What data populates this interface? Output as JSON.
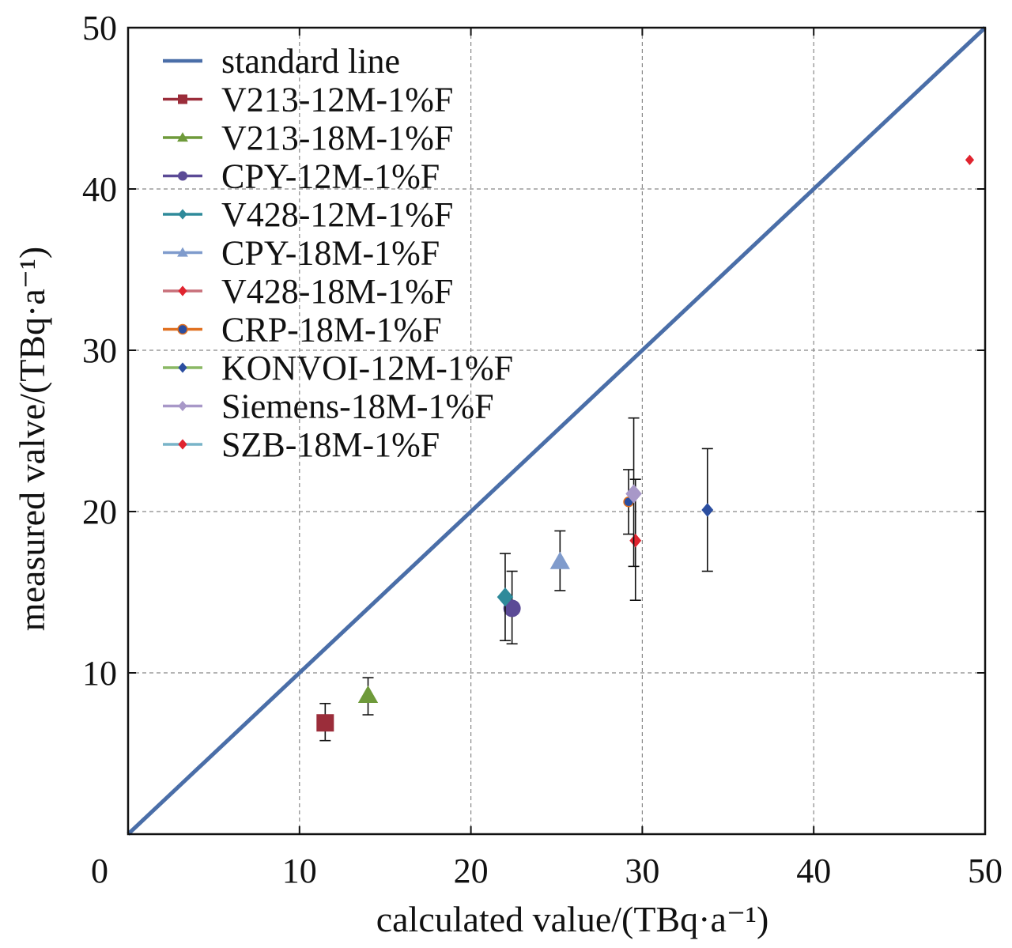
{
  "chart_data": {
    "type": "scatter",
    "xlabel": "calculated value/(TBq·a⁻¹)",
    "ylabel": "measured valve/(TBq·a⁻¹)",
    "xlim": [
      0,
      50
    ],
    "ylim": [
      0,
      50
    ],
    "x_ticks": [
      0,
      10,
      20,
      30,
      40,
      50
    ],
    "y_ticks": [
      10,
      20,
      30,
      40,
      50
    ],
    "grid": true,
    "legend_position": "top-left",
    "reference_line": {
      "name": "standard line",
      "color": "#4a6ea8",
      "points": [
        [
          0,
          0
        ],
        [
          50,
          50
        ]
      ]
    },
    "series": [
      {
        "name": "V213-12M-1%F",
        "color": "#9b2d3a",
        "marker": "square",
        "size": "large",
        "x": 11.5,
        "y": 6.9,
        "err_low": 5.8,
        "err_high": 8.1
      },
      {
        "name": "V213-18M-1%F",
        "color": "#6e9a3a",
        "marker": "triangle",
        "size": "large",
        "x": 14.0,
        "y": 8.6,
        "err_low": 7.4,
        "err_high": 9.7
      },
      {
        "name": "CPY-12M-1%F",
        "color": "#5b4a96",
        "marker": "circle",
        "size": "large",
        "x": 22.4,
        "y": 14.0,
        "err_low": 11.8,
        "err_high": 16.3
      },
      {
        "name": "V428-12M-1%F",
        "color": "#2f8a9a",
        "marker": "diamond",
        "size": "large",
        "x": 22.0,
        "y": 14.7,
        "err_low": 12.0,
        "err_high": 17.4
      },
      {
        "name": "CPY-18M-1%F",
        "color": "#7f9bcc",
        "marker": "triangle",
        "size": "large",
        "x": 25.2,
        "y": 16.9,
        "err_low": 15.1,
        "err_high": 18.8
      },
      {
        "name": "V428-18M-1%F",
        "color": "#e0242f",
        "marker": "diamond",
        "size": "medium",
        "x": 29.6,
        "y": 18.2,
        "err_low": 14.5,
        "err_high": 22.0
      },
      {
        "name": "CRP-18M-1%F",
        "color": "#2b4ea0",
        "marker": "circle",
        "size": "small",
        "edge": "#e07020",
        "x": 29.2,
        "y": 20.6,
        "err_low": 18.6,
        "err_high": 22.6
      },
      {
        "name": "KONVOI-12M-1%F",
        "color": "#2b4ea0",
        "marker": "diamond",
        "size": "medium",
        "x": 33.8,
        "y": 20.1,
        "err_low": 16.3,
        "err_high": 23.9
      },
      {
        "name": "Siemens-18M-1%F",
        "color": "#a898c8",
        "marker": "diamond",
        "size": "large",
        "x": 29.5,
        "y": 21.1,
        "err_low": 16.6,
        "err_high": 25.8
      },
      {
        "name": "SZB-18M-1%F",
        "color": "#e0242f",
        "marker": "diamond",
        "size": "small",
        "x": 49.1,
        "y": 41.8,
        "err_low": null,
        "err_high": null
      }
    ],
    "legend_line_colors": {
      "standard line": "#4a6ea8",
      "V213-12M-1%F": "#9b2d3a",
      "V213-18M-1%F": "#6e9a3a",
      "CPY-12M-1%F": "#5b4a96",
      "V428-12M-1%F": "#2f8a9a",
      "CPY-18M-1%F": "#7f9bcc",
      "V428-18M-1%F": "#c8707a",
      "CRP-18M-1%F": "#e07020",
      "KONVOI-12M-1%F": "#8ab864",
      "Siemens-18M-1%F": "#a898c8",
      "SZB-18M-1%F": "#78b4c8"
    }
  }
}
